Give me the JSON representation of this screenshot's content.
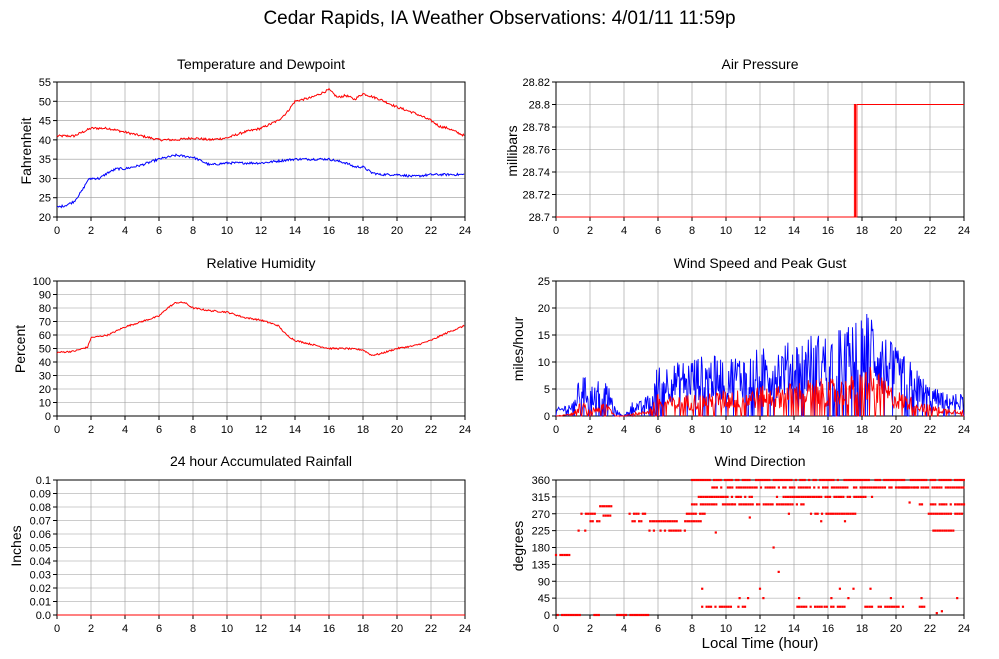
{
  "page": {
    "title": "Cedar Rapids, IA Weather Observations: 4/01/11 11:59p",
    "xaxis_title": "Local Time (hour)"
  },
  "colors": {
    "red": "#ff0000",
    "blue": "#0000ff",
    "grid": "#999999"
  },
  "chart_data": [
    {
      "id": "temp",
      "type": "line",
      "title": "Temperature and Dewpoint",
      "xlabel": "",
      "ylabel": "Fahrenheit",
      "xlim": [
        0,
        24
      ],
      "ylim": [
        20,
        55
      ],
      "xticks": [
        0,
        2,
        4,
        6,
        8,
        10,
        12,
        14,
        16,
        18,
        20,
        22,
        24
      ],
      "yticks": [
        20,
        25,
        30,
        35,
        40,
        45,
        50,
        55
      ],
      "series": [
        {
          "color": "red",
          "x": [
            0,
            1,
            1.5,
            2,
            3,
            4,
            5,
            6,
            7,
            8,
            9,
            10,
            11,
            12,
            13,
            13.5,
            14,
            15,
            15.5,
            16,
            16.5,
            17,
            17.5,
            18,
            19,
            20,
            21,
            22,
            22.5,
            23,
            24
          ],
          "y": [
            41,
            41,
            42,
            43,
            43,
            42,
            41,
            40,
            40,
            40.5,
            40,
            40.5,
            42,
            43,
            45,
            47,
            50,
            51,
            52,
            53,
            51,
            51.5,
            50.5,
            52,
            50.5,
            48.5,
            47,
            45,
            43.5,
            43,
            41
          ]
        },
        {
          "color": "blue",
          "x": [
            0,
            0.5,
            1,
            1.5,
            1.8,
            2,
            2.5,
            3,
            3.5,
            4,
            5,
            6,
            7,
            8,
            9,
            10,
            11,
            12,
            13,
            14,
            15,
            16,
            17,
            17.5,
            18,
            18.5,
            19,
            20,
            21,
            22,
            23,
            24
          ],
          "y": [
            22.5,
            23,
            24,
            27,
            29.5,
            30,
            30,
            31.5,
            32.5,
            32.5,
            33.5,
            35,
            36,
            35.5,
            33.5,
            34,
            34,
            34,
            34.5,
            35,
            35,
            35,
            34,
            33,
            33,
            31.5,
            31,
            31,
            30.5,
            31,
            31,
            31
          ]
        }
      ]
    },
    {
      "id": "pressure",
      "type": "line",
      "title": "Air Pressure",
      "xlabel": "",
      "ylabel": "millibars",
      "xlim": [
        0,
        24
      ],
      "ylim": [
        28.7,
        28.82
      ],
      "xticks": [
        0,
        2,
        4,
        6,
        8,
        10,
        12,
        14,
        16,
        18,
        20,
        22,
        24
      ],
      "yticks": [
        28.7,
        28.72,
        28.74,
        28.76,
        28.78,
        28.8,
        28.82
      ],
      "series": [
        {
          "color": "red",
          "x": [
            0,
            17.55,
            17.55,
            17.62,
            17.62,
            17.7,
            17.7,
            17.78,
            17.78,
            24
          ],
          "y": [
            28.7,
            28.7,
            28.8,
            28.8,
            28.7,
            28.7,
            28.8,
            28.8,
            28.8,
            28.8
          ]
        }
      ]
    },
    {
      "id": "humidity",
      "type": "line",
      "title": "Relative Humidity",
      "xlabel": "",
      "ylabel": "Percent",
      "xlim": [
        0,
        24
      ],
      "ylim": [
        0,
        100
      ],
      "xticks": [
        0,
        2,
        4,
        6,
        8,
        10,
        12,
        14,
        16,
        18,
        20,
        22,
        24
      ],
      "yticks": [
        0,
        10,
        20,
        30,
        40,
        50,
        60,
        70,
        80,
        90,
        100
      ],
      "series": [
        {
          "color": "red",
          "x": [
            0,
            1,
            1.8,
            2,
            3,
            4,
            5,
            6,
            6.5,
            7,
            7.5,
            8,
            9,
            10,
            11,
            12,
            13,
            13.5,
            14,
            15,
            16,
            17,
            18,
            18.5,
            19,
            20,
            21,
            22,
            23,
            24
          ],
          "y": [
            47,
            48,
            51,
            58,
            60,
            66,
            70,
            74,
            80,
            84,
            84,
            80,
            78,
            77,
            73,
            71,
            67,
            60,
            56,
            53,
            50,
            50,
            49,
            45,
            46,
            50,
            52,
            56,
            62,
            67
          ]
        }
      ]
    },
    {
      "id": "wind",
      "type": "line",
      "title": "Wind Speed and Peak Gust",
      "xlabel": "",
      "ylabel": "miles/hour",
      "xlim": [
        0,
        24
      ],
      "ylim": [
        0,
        25
      ],
      "xticks": [
        0,
        2,
        4,
        6,
        8,
        10,
        12,
        14,
        16,
        18,
        20,
        22,
        24
      ],
      "yticks": [
        0,
        5,
        10,
        15,
        20,
        25
      ],
      "series": [
        {
          "color": "blue",
          "x": [
            0,
            1,
            1.5,
            2,
            2.5,
            3,
            3.5,
            4,
            4.5,
            5,
            5.5,
            6,
            7,
            8,
            9,
            10,
            11,
            12,
            13,
            14,
            15,
            16,
            17,
            18,
            18.5,
            19,
            20,
            21,
            22,
            23,
            24
          ],
          "y": [
            1,
            2,
            6,
            4,
            5,
            5,
            1,
            0,
            2,
            2,
            3,
            7,
            7,
            8,
            8,
            8,
            8.5,
            9,
            9.5,
            10,
            11,
            11,
            12,
            13,
            15,
            12,
            9,
            7,
            4,
            3,
            3
          ]
        },
        {
          "color": "red",
          "x": [
            0,
            1,
            1.5,
            2,
            2.5,
            3,
            3.5,
            4,
            4.5,
            5,
            5.5,
            6,
            7,
            8,
            9,
            10,
            11,
            12,
            13,
            14,
            15,
            16,
            17,
            18,
            18.5,
            19,
            20,
            21,
            22,
            23,
            24
          ],
          "y": [
            0,
            0.5,
            2,
            1,
            1.5,
            2,
            0,
            0,
            0.5,
            0.5,
            1,
            3,
            2.5,
            3,
            3,
            3.5,
            3.5,
            4,
            4,
            4.5,
            5,
            5,
            5,
            6,
            7,
            5.5,
            3.5,
            2.5,
            1.5,
            1,
            1
          ]
        }
      ]
    },
    {
      "id": "rain",
      "type": "line",
      "title": "24 hour Accumulated Rainfall",
      "xlabel": "",
      "ylabel": "Inches",
      "xlim": [
        0,
        24
      ],
      "ylim": [
        0,
        0.1
      ],
      "xticks": [
        0,
        2,
        4,
        6,
        8,
        10,
        12,
        14,
        16,
        18,
        20,
        22,
        24
      ],
      "yticks": [
        0,
        0.01,
        0.02,
        0.03,
        0.04,
        0.05,
        0.06,
        0.07,
        0.08,
        0.09,
        0.1
      ],
      "series": [
        {
          "color": "red",
          "x": [
            0,
            24
          ],
          "y": [
            0,
            0
          ]
        }
      ]
    },
    {
      "id": "direction",
      "type": "scatter",
      "title": "Wind Direction",
      "xlabel": "Local Time (hour)",
      "ylabel": "degrees",
      "xlim": [
        0,
        24
      ],
      "ylim": [
        0,
        360
      ],
      "xticks": [
        0,
        2,
        4,
        6,
        8,
        10,
        12,
        14,
        16,
        18,
        20,
        22,
        24
      ],
      "yticks": [
        0,
        45,
        90,
        135,
        180,
        225,
        270,
        315,
        360
      ],
      "series": [
        {
          "color": "red",
          "segments": [
            {
              "x0": 0.0,
              "x1": 0.9,
              "y": 160
            },
            {
              "x0": 0.1,
              "x1": 1.4,
              "y": 0
            },
            {
              "x0": 1.2,
              "x1": 1.8,
              "y": 225
            },
            {
              "x0": 1.5,
              "x1": 2.3,
              "y": 270
            },
            {
              "x0": 1.9,
              "x1": 2.8,
              "y": 250
            },
            {
              "x0": 2.0,
              "x1": 2.7,
              "y": 0
            },
            {
              "x0": 2.6,
              "x1": 3.3,
              "y": 290
            },
            {
              "x0": 2.8,
              "x1": 3.2,
              "y": 265
            },
            {
              "x0": 3.6,
              "x1": 5.6,
              "y": 0
            },
            {
              "x0": 4.2,
              "x1": 5.3,
              "y": 270
            },
            {
              "x0": 4.5,
              "x1": 7.2,
              "y": 250
            },
            {
              "x0": 5.5,
              "x1": 7.7,
              "y": 225
            },
            {
              "x0": 7.7,
              "x1": 8.8,
              "y": 270
            },
            {
              "x0": 7.6,
              "x1": 8.6,
              "y": 250
            },
            {
              "x0": 8.0,
              "x1": 10.4,
              "y": 295
            },
            {
              "x0": 8.4,
              "x1": 11.6,
              "y": 315
            },
            {
              "x0": 9.2,
              "x1": 12.3,
              "y": 340
            },
            {
              "x0": 8.0,
              "x1": 24.0,
              "y": 360
            },
            {
              "x0": 10.4,
              "x1": 14.8,
              "y": 295
            },
            {
              "x0": 12.2,
              "x1": 21.4,
              "y": 340
            },
            {
              "x0": 13.0,
              "x1": 18.6,
              "y": 315
            },
            {
              "x0": 15.0,
              "x1": 17.6,
              "y": 270
            },
            {
              "x0": 20.2,
              "x1": 24.0,
              "y": 340
            },
            {
              "x0": 21.4,
              "x1": 24.0,
              "y": 295
            },
            {
              "x0": 21.8,
              "x1": 24.0,
              "y": 270
            },
            {
              "x0": 22.2,
              "x1": 23.4,
              "y": 225
            },
            {
              "x0": 8.6,
              "x1": 10.3,
              "y": 22
            },
            {
              "x0": 10.6,
              "x1": 11.2,
              "y": 22
            },
            {
              "x0": 14.2,
              "x1": 15.7,
              "y": 22
            },
            {
              "x0": 15.8,
              "x1": 17.0,
              "y": 22
            },
            {
              "x0": 18.2,
              "x1": 20.5,
              "y": 22
            },
            {
              "x0": 21.4,
              "x1": 21.9,
              "y": 22
            }
          ],
          "points": [
            {
              "x": 8.6,
              "y": 70
            },
            {
              "x": 10.8,
              "y": 45
            },
            {
              "x": 11.3,
              "y": 45
            },
            {
              "x": 12.0,
              "y": 70
            },
            {
              "x": 12.2,
              "y": 45
            },
            {
              "x": 12.8,
              "y": 180
            },
            {
              "x": 13.1,
              "y": 115
            },
            {
              "x": 14.3,
              "y": 45
            },
            {
              "x": 16.2,
              "y": 45
            },
            {
              "x": 16.7,
              "y": 70
            },
            {
              "x": 17.2,
              "y": 45
            },
            {
              "x": 17.5,
              "y": 70
            },
            {
              "x": 18.5,
              "y": 70
            },
            {
              "x": 19.7,
              "y": 45
            },
            {
              "x": 21.5,
              "y": 45
            },
            {
              "x": 22.4,
              "y": 5
            },
            {
              "x": 22.7,
              "y": 10
            },
            {
              "x": 23.6,
              "y": 45
            },
            {
              "x": 9.4,
              "y": 220
            },
            {
              "x": 11.4,
              "y": 260
            },
            {
              "x": 13.7,
              "y": 270
            },
            {
              "x": 15.6,
              "y": 250
            },
            {
              "x": 17.0,
              "y": 250
            },
            {
              "x": 20.8,
              "y": 300
            }
          ]
        }
      ]
    }
  ]
}
